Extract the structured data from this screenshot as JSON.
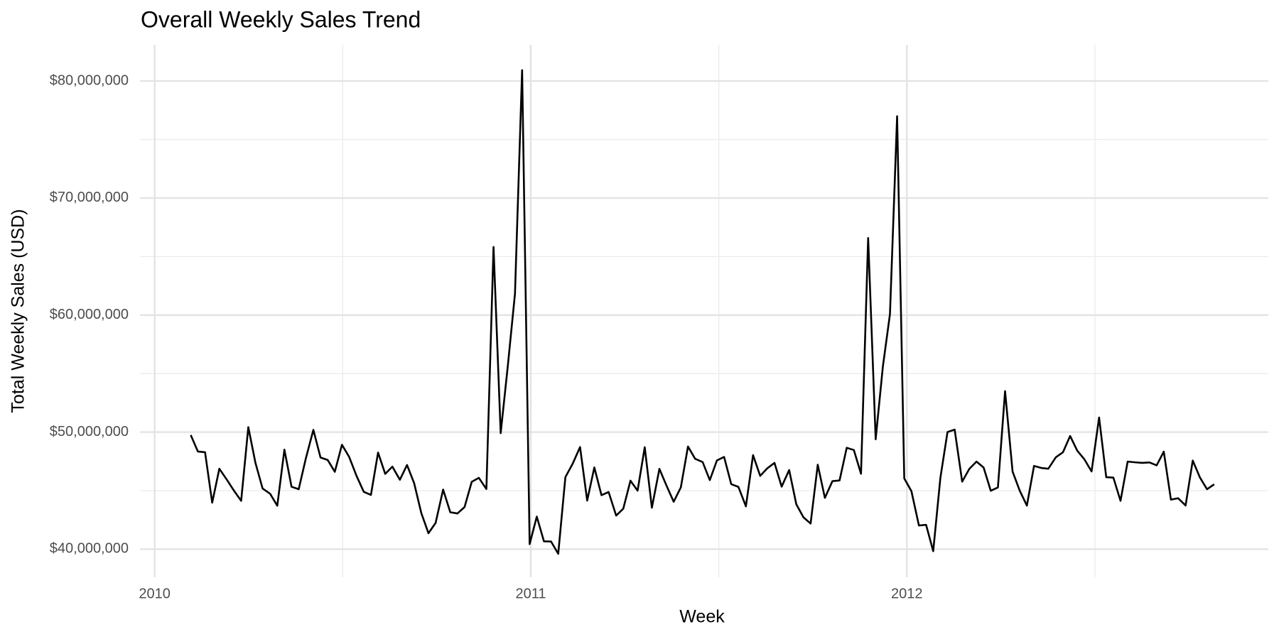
{
  "chart_data": {
    "type": "line",
    "title": "Overall Weekly Sales Trend",
    "x_label": "Week",
    "y_label": "Total Weekly Sales (USD)",
    "x": [
      2010.096,
      2010.115,
      2010.134,
      2010.153,
      2010.172,
      2010.192,
      2010.211,
      2010.23,
      2010.249,
      2010.268,
      2010.287,
      2010.307,
      2010.326,
      2010.345,
      2010.364,
      2010.383,
      2010.402,
      2010.422,
      2010.441,
      2010.46,
      2010.479,
      2010.498,
      2010.517,
      2010.537,
      2010.556,
      2010.575,
      2010.594,
      2010.613,
      2010.632,
      2010.652,
      2010.671,
      2010.69,
      2010.709,
      2010.728,
      2010.747,
      2010.767,
      2010.786,
      2010.805,
      2010.824,
      2010.843,
      2010.862,
      2010.882,
      2010.901,
      2010.92,
      2010.939,
      2010.958,
      2010.977,
      2010.997,
      2011.016,
      2011.035,
      2011.054,
      2011.073,
      2011.092,
      2011.112,
      2011.131,
      2011.15,
      2011.169,
      2011.188,
      2011.207,
      2011.227,
      2011.246,
      2011.265,
      2011.284,
      2011.303,
      2011.322,
      2011.342,
      2011.361,
      2011.38,
      2011.399,
      2011.418,
      2011.437,
      2011.457,
      2011.476,
      2011.495,
      2011.514,
      2011.533,
      2011.552,
      2011.572,
      2011.591,
      2011.61,
      2011.629,
      2011.648,
      2011.667,
      2011.687,
      2011.706,
      2011.725,
      2011.744,
      2011.763,
      2011.782,
      2011.802,
      2011.821,
      2011.84,
      2011.859,
      2011.878,
      2011.897,
      2011.917,
      2011.936,
      2011.955,
      2011.974,
      2011.993,
      2012.012,
      2012.032,
      2012.051,
      2012.07,
      2012.089,
      2012.108,
      2012.127,
      2012.147,
      2012.166,
      2012.185,
      2012.204,
      2012.223,
      2012.242,
      2012.261,
      2012.281,
      2012.3,
      2012.319,
      2012.338,
      2012.357,
      2012.376,
      2012.396,
      2012.415,
      2012.434,
      2012.453,
      2012.472,
      2012.491,
      2012.511,
      2012.53,
      2012.549,
      2012.568,
      2012.587,
      2012.606,
      2012.626,
      2012.645,
      2012.664,
      2012.683,
      2012.702,
      2012.721,
      2012.741,
      2012.76,
      2012.779,
      2012.798,
      2012.817
    ],
    "series": [
      {
        "color": "#000000",
        "values": [
          49750000,
          48340000,
          48280000,
          43970000,
          46870000,
          45930000,
          44990000,
          44130000,
          50420000,
          47370000,
          45180000,
          44730000,
          43710000,
          48500000,
          45330000,
          45120000,
          47760000,
          50190000,
          47830000,
          47620000,
          46610000,
          48920000,
          47890000,
          46240000,
          44900000,
          44630000,
          48250000,
          46430000,
          47050000,
          45930000,
          47190000,
          45630000,
          43080000,
          41360000,
          42240000,
          45090000,
          43150000,
          43050000,
          43600000,
          45750000,
          46090000,
          45140000,
          65820000,
          49910000,
          55670000,
          61820000,
          80930000,
          40430000,
          42780000,
          40670000,
          40650000,
          39600000,
          46150000,
          47340000,
          48720000,
          44150000,
          46980000,
          44610000,
          44880000,
          42870000,
          43460000,
          45850000,
          45000000,
          48710000,
          43540000,
          46860000,
          45420000,
          44050000,
          45280000,
          48770000,
          47720000,
          47440000,
          45900000,
          47580000,
          47880000,
          45550000,
          45320000,
          43660000,
          48030000,
          46260000,
          46910000,
          47370000,
          45340000,
          46760000,
          43830000,
          42720000,
          42190000,
          47210000,
          44380000,
          45810000,
          45870000,
          48660000,
          48470000,
          46440000,
          66590000,
          49390000,
          55560000,
          60090000,
          76990000,
          46040000,
          44960000,
          42020000,
          42080000,
          39830000,
          46080000,
          50010000,
          50210000,
          45770000,
          46860000,
          47480000,
          46970000,
          44990000,
          45270000,
          53500000,
          46630000,
          45000000,
          43720000,
          47110000,
          46940000,
          46870000,
          47850000,
          48280000,
          49670000,
          48410000,
          47670000,
          46640000,
          51250000,
          46150000,
          46110000,
          44130000,
          47480000,
          47420000,
          47370000,
          47410000,
          47160000,
          48330000,
          44230000,
          44350000,
          43730000,
          47570000,
          46130000,
          45120000,
          45540000
        ]
      }
    ],
    "xlim": [
      2009.961,
      2012.961
    ],
    "xticks": [
      2010,
      2011,
      2012
    ],
    "x_minor_ticks": [
      2010.5,
      2011.5,
      2012.5
    ],
    "ylim": [
      37600000,
      83100000
    ],
    "yticks": [
      {
        "value": 40000000,
        "label": "$40,000,000"
      },
      {
        "value": 50000000,
        "label": "$50,000,000"
      },
      {
        "value": 60000000,
        "label": "$60,000,000"
      },
      {
        "value": 70000000,
        "label": "$70,000,000"
      },
      {
        "value": 80000000,
        "label": "$80,000,000"
      }
    ],
    "y_minor_ticks": [
      45000000,
      55000000,
      65000000,
      75000000
    ],
    "grid": true
  }
}
